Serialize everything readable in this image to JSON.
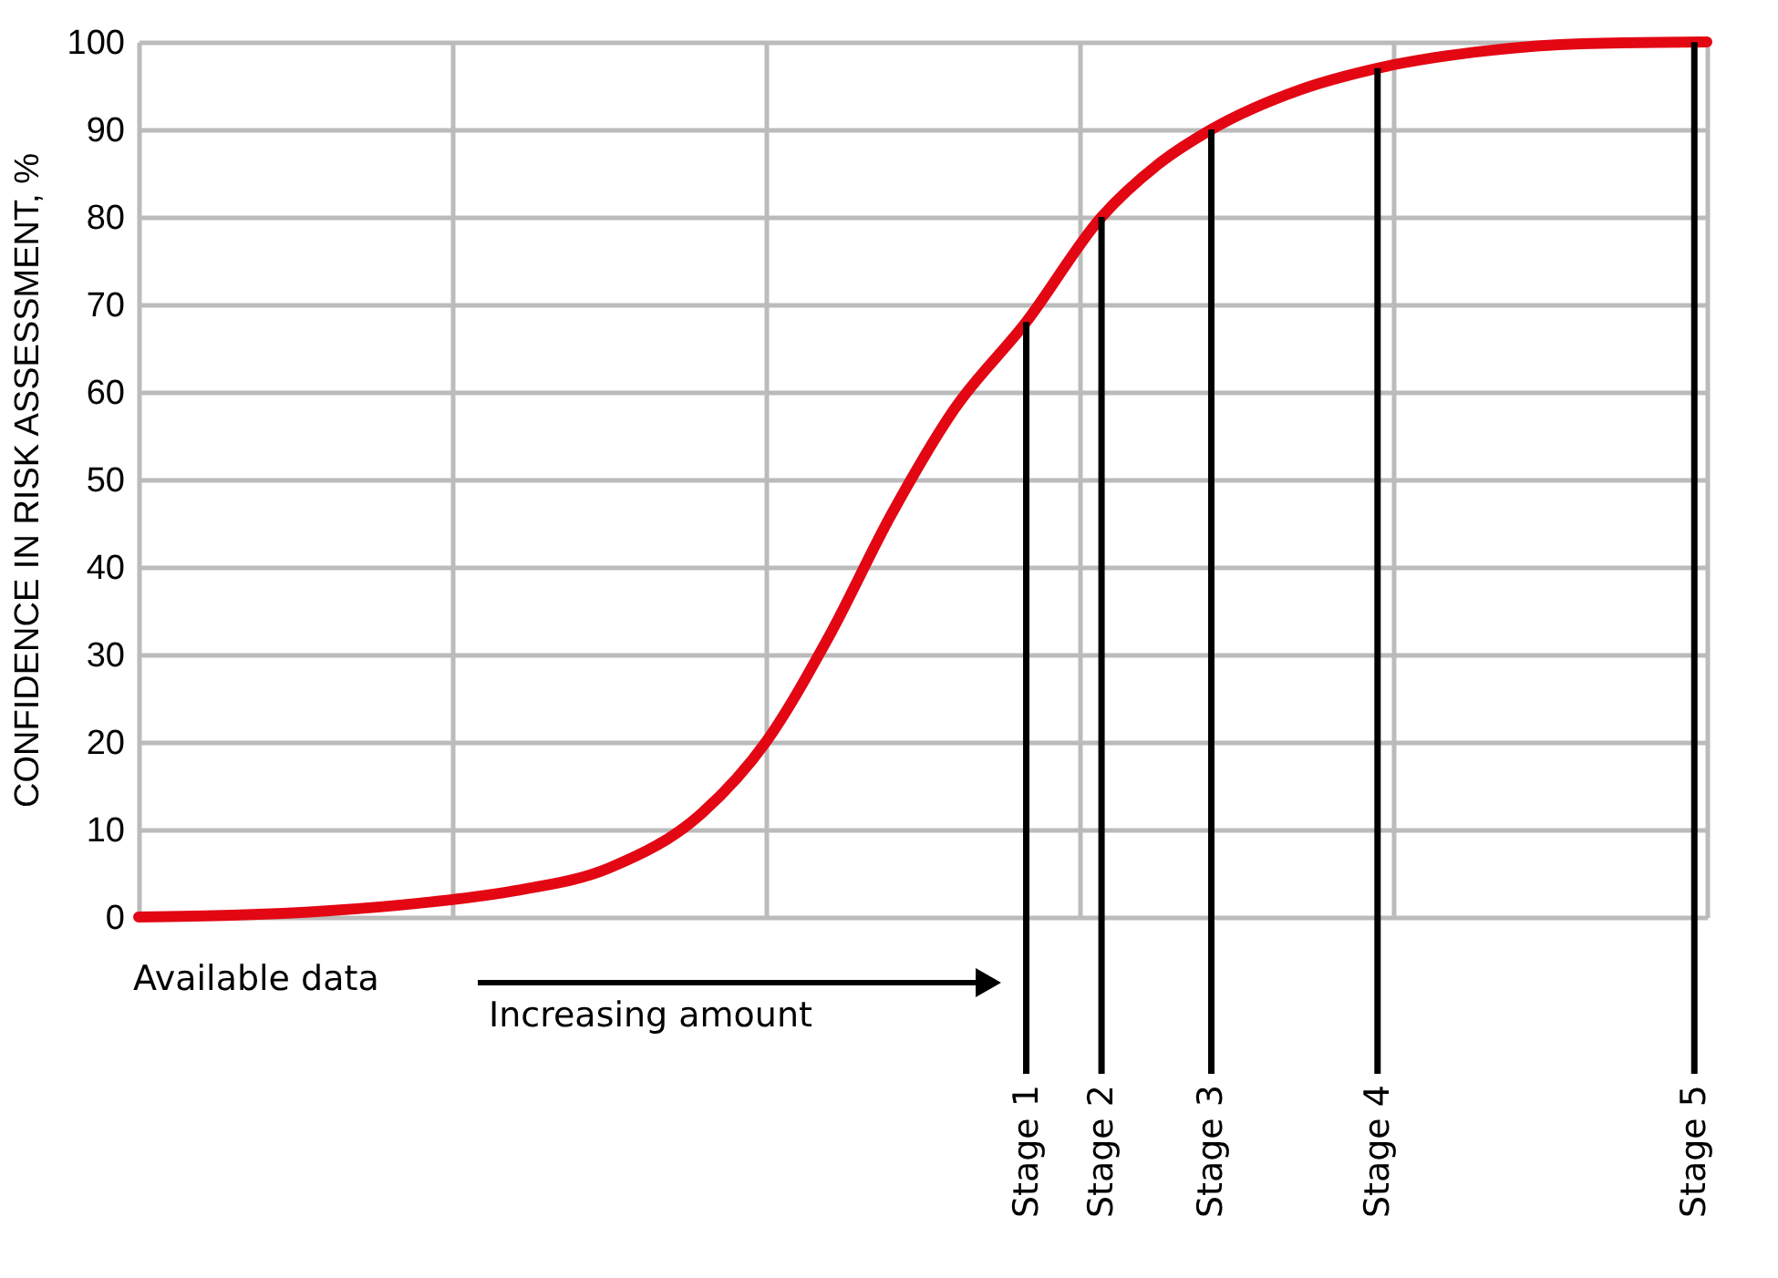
{
  "chart_data": {
    "type": "line",
    "ylabel": "CONFIDENCE IN RISK ASSESSMENT, %",
    "x": [
      0,
      0.3,
      0.6,
      0.9,
      1.2,
      1.5,
      1.8,
      2.0,
      2.2,
      2.4,
      2.6,
      2.83,
      3.07,
      3.25,
      3.42,
      3.7,
      3.95,
      4.3,
      4.6,
      5.0
    ],
    "series": [
      {
        "color": "#e30613",
        "values": [
          0,
          0.2,
          0.7,
          1.6,
          3.0,
          5.6,
          12,
          20,
          32,
          46,
          58,
          68,
          80,
          86,
          90,
          94.5,
          97,
          99,
          99.8,
          100
        ]
      }
    ],
    "xlim": [
      0,
      5
    ],
    "xticks": [
      {
        "value": 0,
        "label": null
      },
      {
        "value": 1,
        "label": null
      },
      {
        "value": 2,
        "label": null
      },
      {
        "value": 3,
        "label": null
      },
      {
        "value": 4,
        "label": null
      },
      {
        "value": 5,
        "label": null
      }
    ],
    "ylim": [
      0,
      100
    ],
    "yticks": [
      0,
      10,
      20,
      30,
      40,
      50,
      60,
      70,
      80,
      90,
      100
    ],
    "grid": true,
    "tick_labels": "y",
    "marker": "none",
    "line_style": "solid",
    "ref_lines": [
      {
        "axis": "x",
        "value": 2.83,
        "label": "Stage 1",
        "color": "#000000"
      },
      {
        "axis": "x",
        "value": 3.07,
        "label": "Stage 2",
        "color": "#000000"
      },
      {
        "axis": "x",
        "value": 3.42,
        "label": "Stage 3",
        "color": "#000000"
      },
      {
        "axis": "x",
        "value": 3.95,
        "label": "Stage 4",
        "color": "#000000"
      },
      {
        "axis": "x",
        "value": 4.96,
        "label": "Stage 5",
        "color": "#000000"
      }
    ],
    "annotations": [
      "Available data",
      "Increasing amount"
    ]
  }
}
